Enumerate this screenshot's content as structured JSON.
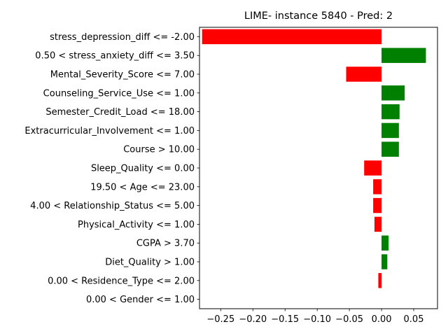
{
  "chart_data": {
    "type": "bar",
    "orientation": "horizontal",
    "title": "LIME- instance 5840 - Pred: 2",
    "xlabel": "",
    "ylabel": "",
    "xlim": [
      -0.283,
      0.087
    ],
    "xticks": [
      -0.25,
      -0.2,
      -0.15,
      -0.1,
      -0.05,
      0.0,
      0.05
    ],
    "xtick_labels": [
      "−0.25",
      "−0.20",
      "−0.15",
      "−0.10",
      "−0.05",
      "0.00",
      "0.05"
    ],
    "grid": false,
    "legend": "none",
    "positive_color": "#008000",
    "negative_color": "#ff0000",
    "categories": [
      "stress_depression_diff <= -2.00",
      "0.50 < stress_anxiety_diff <= 3.50",
      "Mental_Severity_Score <= 7.00",
      "Counseling_Service_Use <= 1.00",
      "Semester_Credit_Load <= 18.00",
      "Extracurricular_Involvement <= 1.00",
      "Course > 10.00",
      "Sleep_Quality <= 0.00",
      "19.50 < Age <= 23.00",
      "4.00 < Relationship_Status <= 5.00",
      "Physical_Activity <= 1.00",
      "CGPA > 3.70",
      "Diet_Quality > 1.00",
      "0.00 < Residence_Type <= 2.00",
      "0.00 < Gender <= 1.00"
    ],
    "values": [
      -0.279,
      0.069,
      -0.055,
      0.036,
      0.028,
      0.027,
      0.027,
      -0.027,
      -0.013,
      -0.013,
      -0.011,
      0.011,
      0.009,
      -0.005,
      0.0
    ]
  }
}
